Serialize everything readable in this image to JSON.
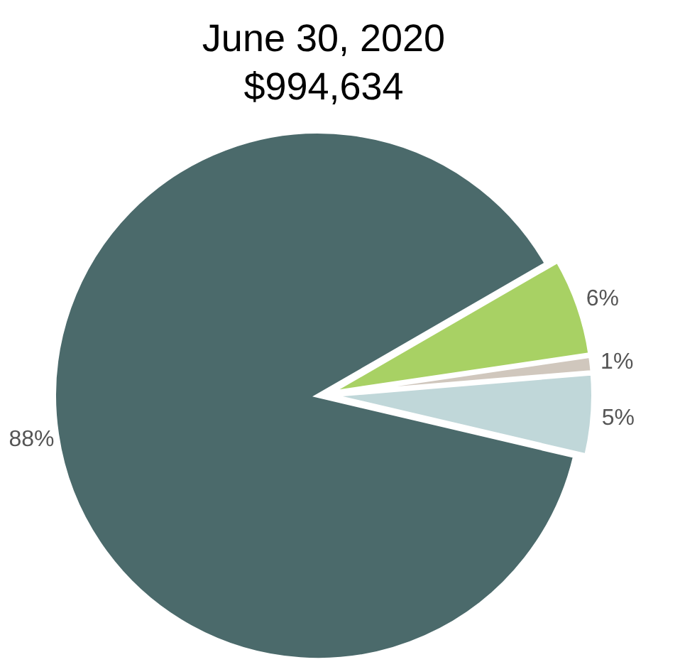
{
  "chart_data": {
    "type": "pie",
    "title": "June 30, 2020",
    "subtitle": "$994,634",
    "categories": [
      null,
      null,
      null,
      null
    ],
    "values": [
      6,
      1,
      5,
      88
    ],
    "colors": [
      "#a8d164",
      "#d0c7bd",
      "#c0d7d9",
      "#4b6a6b"
    ],
    "value_labels": [
      "6%",
      "1%",
      "5%",
      "88%"
    ]
  }
}
